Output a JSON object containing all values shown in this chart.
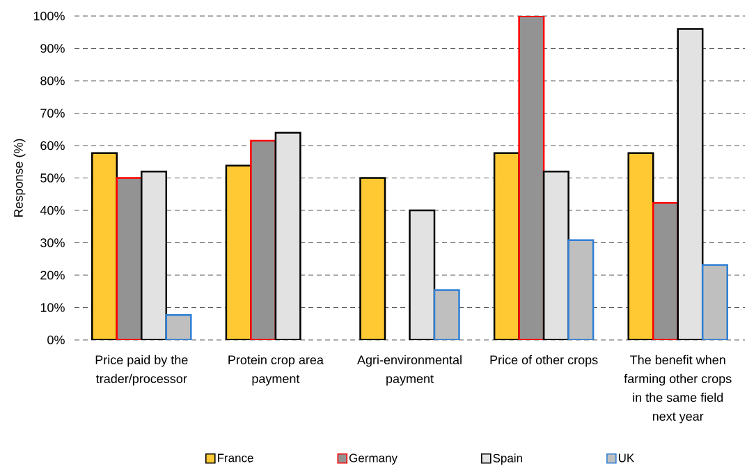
{
  "chart_data": {
    "type": "bar",
    "ylabel": "Response (%)",
    "categories": [
      "Price paid by the trader/processor",
      "Protein crop area payment",
      "Agri-environmental payment",
      "Price of other crops",
      "The benefit when farming other crops in the same field next year"
    ],
    "series": [
      {
        "name": "France",
        "color": "#ffc933",
        "values": [
          57.7,
          53.8,
          50,
          57.7,
          57.7
        ]
      },
      {
        "name": "Germany",
        "color": "#939393",
        "values": [
          50,
          61.5,
          null,
          100,
          42.3
        ]
      },
      {
        "name": "Spain",
        "color": "#e2e2e2",
        "values": [
          52,
          64,
          40,
          52,
          96
        ]
      },
      {
        "name": "UK",
        "color": "#bfbfbf",
        "values": [
          7.7,
          null,
          15.4,
          30.8,
          23.1
        ]
      }
    ],
    "ylim": [
      0,
      100
    ],
    "yticks": [
      {
        "value": 0,
        "label": "0%"
      },
      {
        "value": 10,
        "label": "10%"
      },
      {
        "value": 20,
        "label": "20%"
      },
      {
        "value": 30,
        "label": "30%"
      },
      {
        "value": 40,
        "label": "40%"
      },
      {
        "value": 50,
        "label": "50%"
      },
      {
        "value": 60,
        "label": "60%"
      },
      {
        "value": 70,
        "label": "70%"
      },
      {
        "value": 80,
        "label": "80%"
      },
      {
        "value": 90,
        "label": "90%"
      },
      {
        "value": 100,
        "label": "100%"
      }
    ],
    "grid": "y",
    "legend": "bottom"
  }
}
